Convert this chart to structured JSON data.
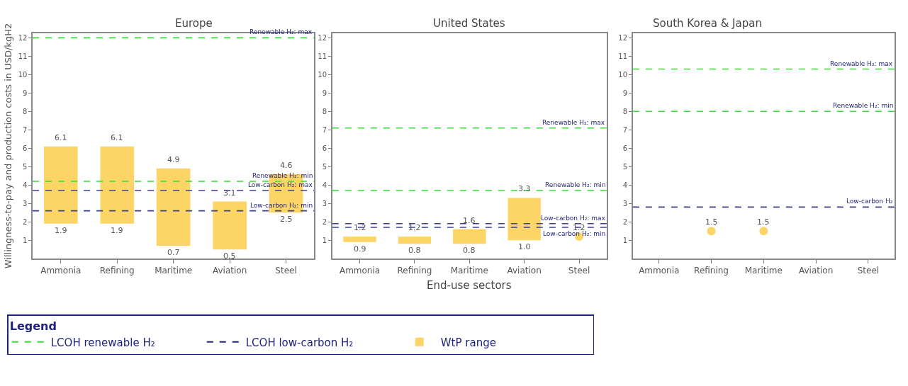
{
  "chart_data": [
    {
      "type": "bar",
      "title": "Europe",
      "ylabel": "Willingness-to-pay and production costs in USD/kgH2",
      "categories": [
        "Ammonia",
        "Refining",
        "Maritime",
        "Aviation",
        "Steel"
      ],
      "series": [
        {
          "name": "LCOH renewable H₂",
          "type": "line",
          "color": "#33dd33",
          "line_style": "dashed",
          "values": [
            null,
            null,
            null,
            null,
            null
          ]
        },
        {
          "name": "LCOH low-carbon H₂",
          "type": "line",
          "color": "#1f2379",
          "line_style": "dashed",
          "values": [
            null,
            null,
            null,
            null,
            null
          ]
        },
        {
          "name": "WtP range",
          "color": "#fdd466",
          "base": [
            1.9,
            1.9,
            0.7,
            0.5,
            2.5
          ],
          "values": [
            4.2,
            4.2,
            4.2,
            2.6,
            2.1
          ]
        }
      ],
      "annotations": [
        {
          "text": "6.1",
          "x": "Ammonia",
          "y": 6.1
        },
        {
          "text": "1.9",
          "x": "Ammonia",
          "y": 1.9
        },
        {
          "text": "6.1",
          "x": "Refining",
          "y": 6.1
        },
        {
          "text": "1.9",
          "x": "Refining",
          "y": 1.9
        },
        {
          "text": "4.9",
          "x": "Maritime",
          "y": 4.9
        },
        {
          "text": "0.7",
          "x": "Maritime",
          "y": 0.7
        },
        {
          "text": "3.1",
          "x": "Aviation",
          "y": 3.1
        },
        {
          "text": "0.5",
          "x": "Aviation",
          "y": 0.5
        },
        {
          "text": "4.6",
          "x": "Steel",
          "y": 4.6
        },
        {
          "text": "2.5",
          "x": "Steel",
          "y": 2.5
        }
      ],
      "ref_lines": [
        {
          "axis": "y",
          "value": 12.0,
          "label": "Renewable H₂: max",
          "color": "#33dd33",
          "line_style": "dashed"
        },
        {
          "axis": "y",
          "value": 4.2,
          "label": "Renewable H₂: min",
          "color": "#33dd33",
          "line_style": "dashed"
        },
        {
          "axis": "y",
          "value": 3.7,
          "label": "Low-carbon H₂: max",
          "color": "#3a3f8f",
          "line_style": "dashed"
        },
        {
          "axis": "y",
          "value": 2.6,
          "label": "Low-carbon H₂: min",
          "color": "#3a3f8f",
          "line_style": "dashed"
        }
      ],
      "ylim": [
        0,
        12.25
      ],
      "yticks": [
        1,
        2,
        3,
        4,
        5,
        6,
        7,
        8,
        9,
        10,
        11,
        12
      ],
      "legend": "bottom",
      "legend_title": "Legend"
    },
    {
      "type": "bar",
      "title": "United States",
      "xlabel": "End-use sectors",
      "categories": [
        "Ammonia",
        "Refining",
        "Maritime",
        "Aviation",
        "Steel"
      ],
      "series": [
        {
          "color": "#fdd466",
          "base": [
            0.9,
            0.8,
            0.8,
            1.0,
            null
          ],
          "values": [
            0.3,
            0.4,
            0.8,
            2.3,
            null
          ]
        },
        {
          "type": "scatter",
          "color": "#fdd466",
          "marker": "circle",
          "x": [
            "Steel"
          ],
          "values": [
            1.2
          ]
        }
      ],
      "annotations": [
        {
          "text": "1.2",
          "x": "Ammonia",
          "y": 1.2
        },
        {
          "text": "0.9",
          "x": "Ammonia",
          "y": 0.9
        },
        {
          "text": "1.2",
          "x": "Refining",
          "y": 1.2
        },
        {
          "text": "0.8",
          "x": "Refining",
          "y": 0.8
        },
        {
          "text": "1.6",
          "x": "Maritime",
          "y": 1.6
        },
        {
          "text": "0.8",
          "x": "Maritime",
          "y": 0.8
        },
        {
          "text": "3.3",
          "x": "Aviation",
          "y": 3.3
        },
        {
          "text": "1.0",
          "x": "Aviation",
          "y": 1.0
        },
        {
          "text": "1.2",
          "x": "Steel",
          "y": 1.2
        }
      ],
      "ref_lines": [
        {
          "axis": "y",
          "value": 7.1,
          "label": "Renewable H₂: max",
          "color": "#33dd33",
          "line_style": "dashed"
        },
        {
          "axis": "y",
          "value": 3.7,
          "label": "Renewable H₂: min",
          "color": "#33dd33",
          "line_style": "dashed"
        },
        {
          "axis": "y",
          "value": 1.9,
          "label": "Low-carbon H₂: max",
          "color": "#3a3f8f",
          "line_style": "dashed"
        },
        {
          "axis": "y",
          "value": 1.7,
          "label": "Low-carbon H₂: min",
          "color": "#3a3f8f",
          "line_style": "dashed"
        }
      ],
      "ylim": [
        0,
        12.25
      ],
      "yticks": [
        1,
        2,
        3,
        4,
        5,
        6,
        7,
        8,
        9,
        10,
        11,
        12
      ]
    },
    {
      "type": "scatter",
      "title": "South Korea & Japan",
      "categories": [
        "Ammonia",
        "Refining",
        "Maritime",
        "Aviation",
        "Steel"
      ],
      "series": [
        {
          "color": "#fdd466",
          "marker": "circle",
          "x": [
            "Refining",
            "Maritime"
          ],
          "values": [
            1.5,
            1.5
          ]
        }
      ],
      "annotations": [
        {
          "text": "1.5",
          "x": "Refining",
          "y": 1.5
        },
        {
          "text": "1.5",
          "x": "Maritime",
          "y": 1.5
        }
      ],
      "ref_lines": [
        {
          "axis": "y",
          "value": 10.3,
          "label": "Renewable H₂: max",
          "color": "#33dd33",
          "line_style": "dashed"
        },
        {
          "axis": "y",
          "value": 8.0,
          "label": "Renewable H₂: min",
          "color": "#33dd33",
          "line_style": "dashed"
        },
        {
          "axis": "y",
          "value": 2.8,
          "label": "Low-carbon H₂",
          "color": "#3a3f8f",
          "line_style": "dashed"
        }
      ],
      "ylim": [
        0,
        12.25
      ],
      "yticks": [
        1,
        2,
        3,
        4,
        5,
        6,
        7,
        8,
        9,
        10,
        11,
        12
      ]
    }
  ]
}
